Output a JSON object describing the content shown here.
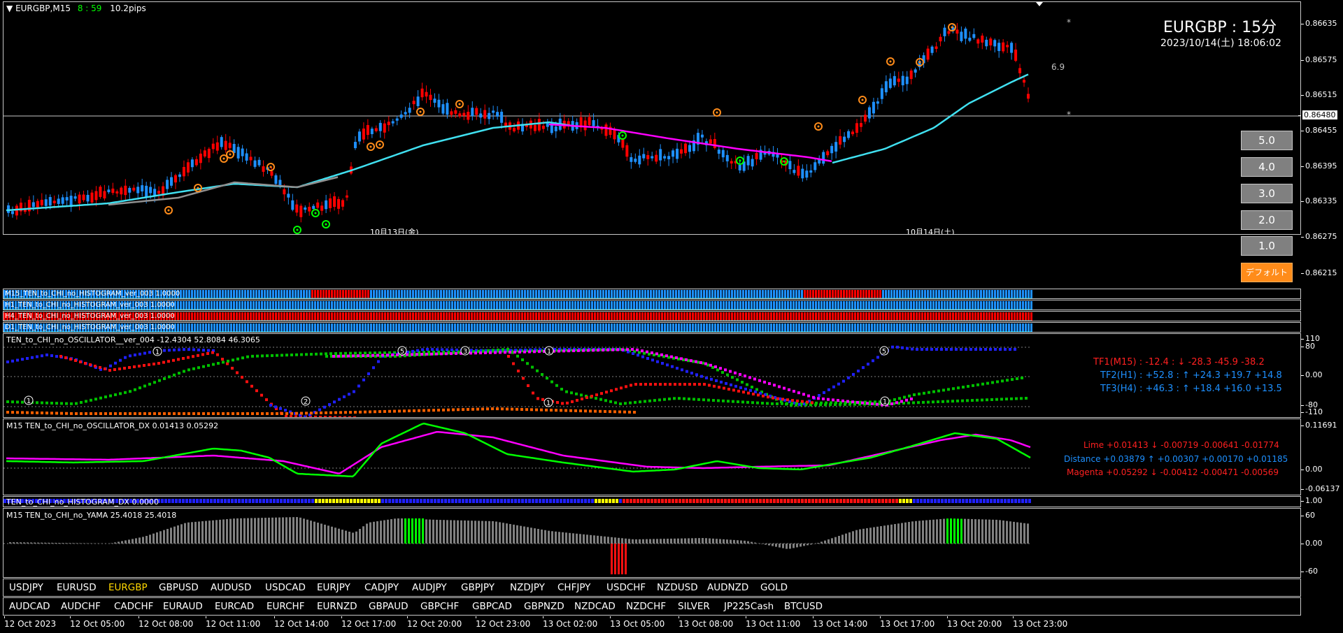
{
  "header": {
    "symbol_label": "EURGBP,M15",
    "time_left": "8 : 59",
    "spread": "10.2pips"
  },
  "title_box": {
    "pair": "EURGBP : 15分",
    "datetime": "2023/10/14(土) 18:06:02",
    "range_value": "6.9",
    "star_top": "*",
    "star_bottom": "*"
  },
  "price_scale": [
    "0.86635",
    "0.86575",
    "0.86515",
    "0.86455",
    "0.86395",
    "0.86335",
    "0.86275",
    "0.86215"
  ],
  "current_price": "0.86480",
  "date_marks": [
    "10月13日(金)",
    "10月14日(土)"
  ],
  "zoom_buttons": [
    "5.0",
    "4.0",
    "3.0",
    "2.0",
    "1.0"
  ],
  "default_button": "デフォルト",
  "histogram_panels": [
    {
      "label": "M15_TEN_to_CHI_no_HISTOGRAM_ver_003 1.0000",
      "scale": "0"
    },
    {
      "label": "H1_TEN_to_CHI_no_HISTOGRAM_ver_003 1.0000",
      "scale": "0"
    },
    {
      "label": "H4_TEN_to_CHI_no_HISTOGRAM_ver_003 1.0000",
      "scale": "0"
    },
    {
      "label": "D1_TEN_to_CHI_no_HISTOGRAM_ver_003 1.0000",
      "scale": "0"
    }
  ],
  "oscillator": {
    "label": "TEN_to_CHI_no_OSCILLATOR__ver_004 -12.4304 52.8084 46.3065",
    "scale": [
      "110",
      "80",
      "0.00",
      "-80",
      "-110"
    ],
    "tf1": "TF1(M15) : -12.4 : ↓ -28.3 -45.9 -38.2",
    "tf2": "TF2(H1) : +52.8 : ↑ +24.3 +19.7 +14.8",
    "tf3": "TF3(H4) : +46.3 : ↑ +18.4 +16.0 +13.5",
    "markers": [
      "1",
      "1",
      "2",
      "5",
      "3",
      "1",
      "1",
      "5",
      "1",
      "5"
    ]
  },
  "dx": {
    "label": "M15 TEN_to_CHI_no_OSCILLATOR_DX  0.01413  0.05292",
    "scale": [
      "0.11691",
      "0.00",
      "-0.06137"
    ],
    "lime": "Lime +0.01413 ↓ -0.00719 -0.00641 -0.01774",
    "distance": "Distance +0.03879 ↑ +0.00307 +0.00170 +0.01185",
    "magenta": "Magenta +0.05292 ↓ -0.00412 -0.00471 -0.00569"
  },
  "dx_histogram": {
    "label": "TEN_to_CHI_no_HISTOGRAM_DX 0.0000",
    "scale": "1.00"
  },
  "yama": {
    "label": "M15  TEN_to_CHI_no_YAMA  25.4018 25.4018",
    "scale": [
      "60",
      "0.00",
      "-60"
    ]
  },
  "symbols_row1": [
    "USDJPY",
    "EURUSD",
    "EURGBP",
    "GBPUSD",
    "AUDUSD",
    "USDCAD",
    "EURJPY",
    "CADJPY",
    "AUDJPY",
    "GBPJPY",
    "NZDJPY",
    "CHFJPY",
    "USDCHF",
    "NZDUSD",
    "AUDNZD",
    "GOLD"
  ],
  "symbols_row2": [
    "AUDCAD",
    "AUDCHF",
    "CADCHF",
    "EURAUD",
    "EURCAD",
    "EURCHF",
    "EURNZD",
    "GBPAUD",
    "GBPCHF",
    "GBPCAD",
    "GBPNZD",
    "NZDCAD",
    "NZDCHF",
    "SILVER",
    "JP225Cash",
    "BTCUSD"
  ],
  "active_symbol": "EURGBP",
  "time_axis": [
    "12 Oct 2023",
    "12 Oct 05:00",
    "12 Oct 08:00",
    "12 Oct 11:00",
    "12 Oct 14:00",
    "12 Oct 17:00",
    "12 Oct 20:00",
    "12 Oct 23:00",
    "13 Oct 02:00",
    "13 Oct 05:00",
    "13 Oct 08:00",
    "13 Oct 11:00",
    "13 Oct 14:00",
    "13 Oct 17:00",
    "13 Oct 20:00",
    "13 Oct 23:00"
  ],
  "colors": {
    "bull": "#1e90ff",
    "bear": "#ff0000",
    "cyan_ma": "#40e0f0",
    "magenta_ma": "#ff00ff",
    "gray_ma": "#909090",
    "lime": "#00ff00",
    "orange": "#ff8c1a"
  }
}
